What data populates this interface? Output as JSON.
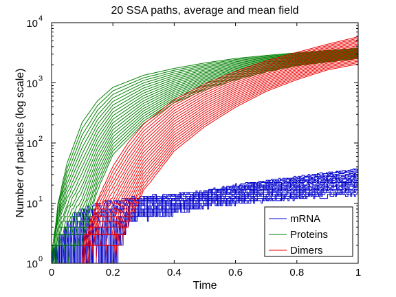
{
  "chart_data": {
    "type": "line",
    "title": "20 SSA paths, average and mean field",
    "xlabel": "Time",
    "ylabel": "Number of particles (log scale)",
    "xlim": [
      0,
      1
    ],
    "ylim": [
      1,
      10000
    ],
    "yscale": "log",
    "x_ticks": [
      "0",
      "0.2",
      "0.4",
      "0.6",
      "0.8",
      "1"
    ],
    "y_ticks": [
      {
        "base": "10",
        "exp": "0"
      },
      {
        "base": "10",
        "exp": "1"
      },
      {
        "base": "10",
        "exp": "2"
      },
      {
        "base": "10",
        "exp": "3"
      },
      {
        "base": "10",
        "exp": "4"
      }
    ],
    "grid": false,
    "legend_position": "bottom-right",
    "paths_per_species": 20,
    "series": [
      {
        "name": "mRNA",
        "color": "#0000cc",
        "x": [
          0.0,
          0.05,
          0.1,
          0.15,
          0.2,
          0.25,
          0.3,
          0.4,
          0.5,
          0.6,
          0.7,
          0.8,
          0.9,
          1.0
        ],
        "y": [
          1,
          2,
          4,
          5,
          7,
          8,
          9,
          10,
          12,
          14,
          16,
          18,
          20,
          22
        ],
        "y_min": [
          1,
          1,
          1,
          1,
          1,
          5,
          6,
          7,
          9,
          10,
          11,
          12,
          13,
          14
        ],
        "y_max": [
          1,
          5,
          8,
          10,
          11,
          12,
          13,
          14,
          16,
          20,
          24,
          28,
          33,
          38
        ]
      },
      {
        "name": "Proteins",
        "color": "#008000",
        "x": [
          0.0,
          0.02,
          0.05,
          0.1,
          0.15,
          0.2,
          0.3,
          0.4,
          0.5,
          0.6,
          0.7,
          0.8,
          0.9,
          1.0
        ],
        "y": [
          1,
          3,
          12,
          60,
          170,
          350,
          750,
          1200,
          1600,
          2000,
          2300,
          2600,
          2800,
          3000
        ],
        "y_min": [
          1,
          1,
          1,
          2,
          15,
          60,
          200,
          450,
          750,
          1100,
          1500,
          1900,
          2200,
          2500
        ],
        "y_max": [
          1,
          10,
          50,
          250,
          550,
          900,
          1400,
          1800,
          2200,
          2600,
          2900,
          3200,
          3500,
          3800
        ]
      },
      {
        "name": "Dimers",
        "color": "#ee0000",
        "x": [
          0.1,
          0.15,
          0.2,
          0.25,
          0.3,
          0.4,
          0.5,
          0.6,
          0.7,
          0.8,
          0.9,
          1.0
        ],
        "y": [
          1,
          4,
          15,
          40,
          90,
          250,
          500,
          900,
          1400,
          2000,
          2800,
          3500
        ],
        "y_min": [
          1,
          1,
          1,
          4,
          15,
          70,
          180,
          380,
          700,
          1100,
          1600,
          2000
        ],
        "y_max": [
          2,
          12,
          45,
          110,
          220,
          550,
          1000,
          1600,
          2400,
          3300,
          4500,
          6000
        ]
      }
    ]
  }
}
